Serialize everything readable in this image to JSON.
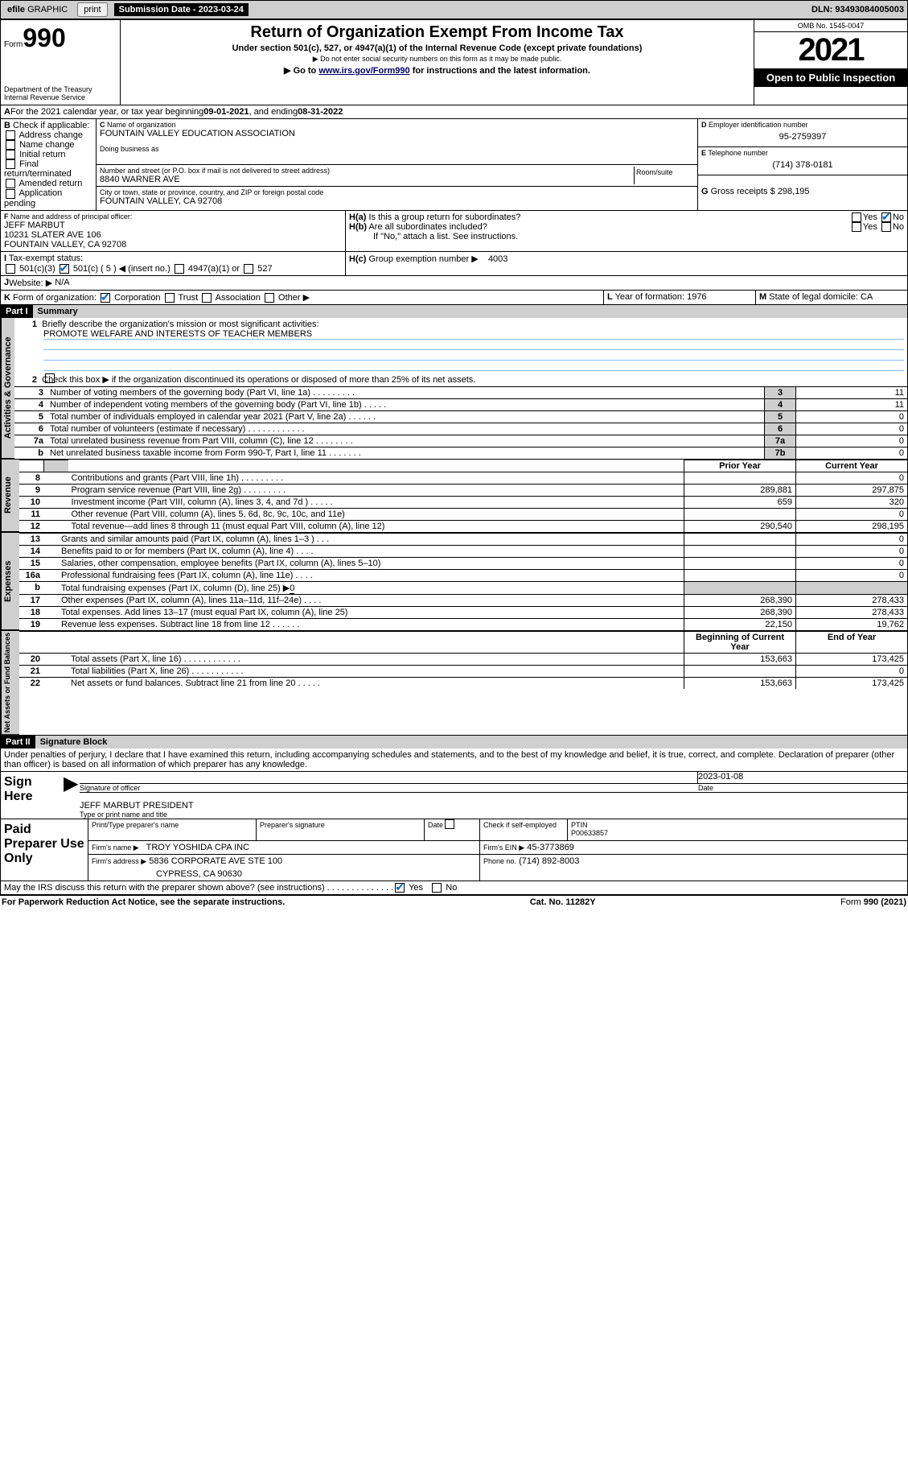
{
  "header": {
    "efile": "efile",
    "graphic": "GRAPHIC",
    "print": "print",
    "sub_date_label": "Submission Date - ",
    "sub_date": "2023-03-24",
    "dln_label": "DLN: ",
    "dln": "93493084005003"
  },
  "box_top": {
    "form": "Form",
    "f990": "990",
    "dept": "Department of the Treasury",
    "irs": "Internal Revenue Service",
    "title": "Return of Organization Exempt From Income Tax",
    "sub1": "Under section 501(c), 527, or 4947(a)(1) of the Internal Revenue Code (except private foundations)",
    "sub2": "▶ Do not enter social security numbers on this form as it may be made public.",
    "sub3_a": "▶ Go to ",
    "sub3_link": "www.irs.gov/Form990",
    "sub3_b": " for instructions and the latest information.",
    "omb": "OMB No. 1545-0047",
    "year": "2021",
    "inspect": "Open to Public Inspection"
  },
  "A": {
    "label": "For the 2021 calendar year, or tax year beginning ",
    "begin": "09-01-2021",
    "mid": " , and ending ",
    "end": "08-31-2022"
  },
  "B": {
    "label": "Check if applicable:",
    "items": [
      "Address change",
      "Name change",
      "Initial return",
      "Final return/terminated",
      "Amended return",
      "Application pending"
    ]
  },
  "C": {
    "name_label": "Name of organization",
    "name": "FOUNTAIN VALLEY EDUCATION ASSOCIATION",
    "dba": "Doing business as",
    "addr_label": "Number and street (or P.O. box if mail is not delivered to street address)",
    "addr": "8840 WARNER AVE",
    "room": "Room/suite",
    "city_label": "City or town, state or province, country, and ZIP or foreign postal code",
    "city": "FOUNTAIN VALLEY, CA  92708"
  },
  "D": {
    "label": "Employer identification number",
    "val": "95-2759397"
  },
  "E": {
    "label": "Telephone number",
    "val": "(714) 378-0181"
  },
  "G": {
    "label": "Gross receipts $",
    "val": "298,195"
  },
  "F": {
    "label": "Name and address of principal officer:",
    "name": "JEFF MARBUT",
    "addr1": "10231 SLATER AVE 106",
    "addr2": "FOUNTAIN VALLEY, CA  92708"
  },
  "H": {
    "a": "Is this a group return for subordinates?",
    "b": "Are all subordinates included?",
    "note": "If \"No,\" attach a list. See instructions.",
    "c_label": "Group exemption number ▶",
    "c": "4003"
  },
  "I": {
    "label": "Tax-exempt status:",
    "c5": "501(c) ( 5 ) ◀ (insert no.)",
    "a501c3": "501(c)(3)",
    "a4947": "4947(a)(1) or",
    "a527": "527"
  },
  "J": {
    "label": "Website: ▶",
    "val": "N/A"
  },
  "K": {
    "label": "Form of organization:",
    "corp": "Corporation",
    "trust": "Trust",
    "assoc": "Association",
    "other": "Other ▶"
  },
  "L": {
    "label": "Year of formation:",
    "val": "1976"
  },
  "M": {
    "label": "State of legal domicile:",
    "val": "CA"
  },
  "part1": {
    "hdr": "Part I",
    "title": "Summary",
    "side_ag": "Activities & Governance",
    "side_rev": "Revenue",
    "side_exp": "Expenses",
    "side_na": "Net Assets or Fund Balances",
    "l1": "Briefly describe the organization's mission or most significant activities:",
    "l1v": "PROMOTE WELFARE AND INTERESTS OF TEACHER MEMBERS",
    "l2": "Check this box ▶       if the organization discontinued its operations or disposed of more than 25% of its net assets.",
    "rows_ag": [
      {
        "n": "3",
        "t": "Number of voting members of the governing body (Part VI, line 1a)  .    .    .    .    .    .    .    .    .",
        "rn": "3",
        "v": "11"
      },
      {
        "n": "4",
        "t": "Number of independent voting members of the governing body (Part VI, line 1b)   .    .    .    .    .",
        "rn": "4",
        "v": "11"
      },
      {
        "n": "5",
        "t": "Total number of individuals employed in calendar year 2021 (Part V, line 2a)    .    .    .    .    .    .",
        "rn": "5",
        "v": "0"
      },
      {
        "n": "6",
        "t": "Total number of volunteers (estimate if necessary)   .    .    .    .    .    .    .    .    .    .    .    .",
        "rn": "6",
        "v": "0"
      },
      {
        "n": "7a",
        "t": "Total unrelated business revenue from Part VIII, column (C), line 12   .    .    .    .    .    .    .    .",
        "rn": "7a",
        "v": "0"
      },
      {
        "n": "b",
        "t": "Net unrelated business taxable income from Form 990-T, Part I, line 11   .    .    .    .    .    .    .",
        "rn": "7b",
        "v": "0"
      }
    ],
    "col_prior": "Prior Year",
    "col_curr": "Current Year",
    "rows_rev": [
      {
        "n": "8",
        "t": "Contributions and grants (Part VIII, line 1h)   .    .    .    .    .    .    .    .    .",
        "p": "",
        "c": "0"
      },
      {
        "n": "9",
        "t": "Program service revenue (Part VIII, line 2g)   .    .    .    .    .    .    .    .    .",
        "p": "289,881",
        "c": "297,875"
      },
      {
        "n": "10",
        "t": "Investment income (Part VIII, column (A), lines 3, 4, and 7d )   .    .    .    .    .",
        "p": "659",
        "c": "320"
      },
      {
        "n": "11",
        "t": "Other revenue (Part VIII, column (A), lines 5, 6d, 8c, 9c, 10c, and 11e)",
        "p": "",
        "c": "0"
      },
      {
        "n": "12",
        "t": "Total revenue—add lines 8 through 11 (must equal Part VIII, column (A), line 12)",
        "p": "290,540",
        "c": "298,195"
      }
    ],
    "rows_exp": [
      {
        "n": "13",
        "t": "Grants and similar amounts paid (Part IX, column (A), lines 1–3 )   .    .    .",
        "p": "",
        "c": "0"
      },
      {
        "n": "14",
        "t": "Benefits paid to or for members (Part IX, column (A), line 4)   .    .    .    .",
        "p": "",
        "c": "0"
      },
      {
        "n": "15",
        "t": "Salaries, other compensation, employee benefits (Part IX, column (A), lines 5–10)",
        "p": "",
        "c": "0"
      },
      {
        "n": "16a",
        "t": "Professional fundraising fees (Part IX, column (A), line 11e)   .    .    .    .",
        "p": "",
        "c": "0"
      },
      {
        "n": "b",
        "t": "Total fundraising expenses (Part IX, column (D), line 25) ▶",
        "p": "shade",
        "c": "shade",
        "v": "0"
      },
      {
        "n": "17",
        "t": "Other expenses (Part IX, column (A), lines 11a–11d, 11f–24e)   .    .    .    .",
        "p": "268,390",
        "c": "278,433"
      },
      {
        "n": "18",
        "t": "Total expenses. Add lines 13–17 (must equal Part IX, column (A), line 25)",
        "p": "268,390",
        "c": "278,433"
      },
      {
        "n": "19",
        "t": "Revenue less expenses. Subtract line 18 from line 12   .    .    .    .    .    .",
        "p": "22,150",
        "c": "19,762"
      }
    ],
    "col_begin": "Beginning of Current Year",
    "col_end": "End of Year",
    "rows_na": [
      {
        "n": "20",
        "t": "Total assets (Part X, line 16)   .    .    .    .    .    .    .    .    .    .    .    .",
        "p": "153,663",
        "c": "173,425"
      },
      {
        "n": "21",
        "t": "Total liabilities (Part X, line 26)   .    .    .    .    .    .    .    .    .    .    .",
        "p": "",
        "c": "0"
      },
      {
        "n": "22",
        "t": "Net assets or fund balances. Subtract line 21 from line 20   .    .    .    .    .",
        "p": "153,663",
        "c": "173,425"
      }
    ]
  },
  "part2": {
    "hdr": "Part II",
    "title": "Signature Block",
    "decl": "Under penalties of perjury, I declare that I have examined this return, including accompanying schedules and statements, and to the best of my knowledge and belief, it is true, correct, and complete. Declaration of preparer (other than officer) is based on all information of which preparer has any knowledge.",
    "sign_here": "Sign Here",
    "sig_officer": "Signature of officer",
    "date": "Date",
    "sig_date": "2023-01-08",
    "officer": "JEFF MARBUT PRESIDENT",
    "type_name": "Type or print name and title",
    "paid": "Paid Preparer Use Only",
    "pt_name": "Print/Type preparer's name",
    "pt_sig": "Preparer's signature",
    "pt_date": "Date",
    "pt_check": "Check        if self-employed",
    "ptin_l": "PTIN",
    "ptin": "P00633857",
    "firm_name_l": "Firm's name     ▶",
    "firm_name": "TROY YOSHIDA CPA INC",
    "firm_ein_l": "Firm's EIN ▶",
    "firm_ein": "45-3773869",
    "firm_addr_l": "Firm's address ▶",
    "firm_addr1": "5836 CORPORATE AVE STE 100",
    "firm_addr2": "CYPRESS, CA  90630",
    "phone_l": "Phone no.",
    "phone": "(714) 892-8003",
    "may": "May the IRS discuss this return with the preparer shown above? (see instructions)   .    .    .    .    .    .    .    .    .    .    .    .    .    ."
  },
  "footer": {
    "pra": "For Paperwork Reduction Act Notice, see the separate instructions.",
    "cat": "Cat. No. 11282Y",
    "form": "Form 990 (2021)"
  },
  "yn": {
    "yes": "Yes",
    "no": "No"
  }
}
